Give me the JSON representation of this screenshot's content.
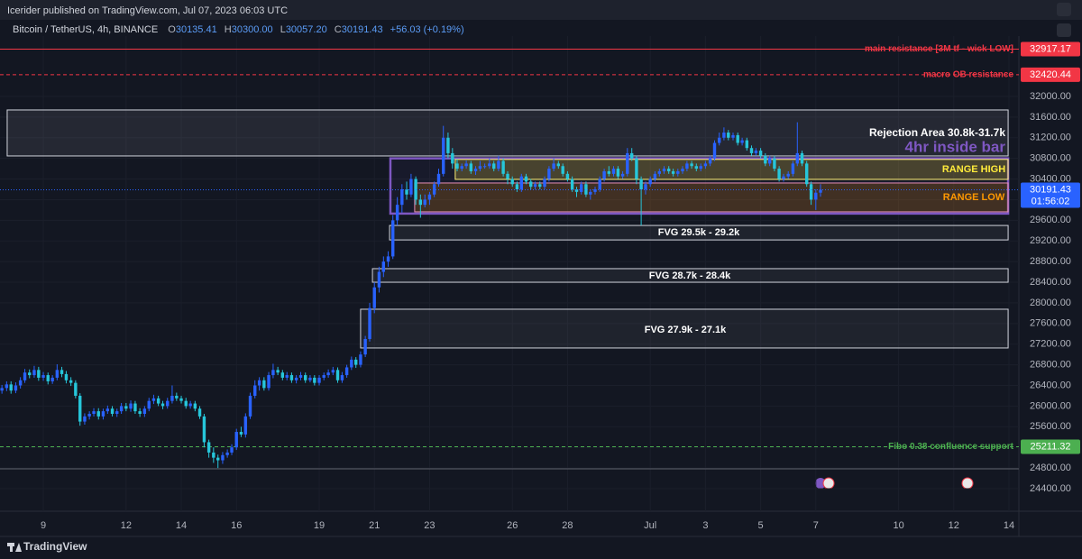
{
  "header": {
    "publisher": "Icerider published on TradingView.com, Jul 07, 2023 06:03 UTC",
    "symbol": "Bitcoin / TetherUS, 4h, BINANCE",
    "ohlc": [
      {
        "key": "O",
        "value": "30135.41"
      },
      {
        "key": "H",
        "value": "30300.00"
      },
      {
        "key": "L",
        "value": "30057.20"
      },
      {
        "key": "C",
        "value": "30191.43"
      }
    ],
    "change": "+56.03 (+0.19%)"
  },
  "chart_data": {
    "type": "candlestick",
    "x": [
      7.5,
      7.67,
      7.83,
      8,
      8.17,
      8.33,
      8.5,
      8.67,
      8.83,
      9,
      9.17,
      9.33,
      9.5,
      9.67,
      9.83,
      10,
      10.17,
      10.33,
      10.5,
      10.67,
      10.83,
      11,
      11.17,
      11.33,
      11.5,
      11.67,
      11.83,
      12,
      12.17,
      12.33,
      12.5,
      12.67,
      12.83,
      13,
      13.17,
      13.33,
      13.5,
      13.67,
      13.83,
      14,
      14.17,
      14.33,
      14.5,
      14.67,
      14.83,
      15,
      15.17,
      15.33,
      15.5,
      15.67,
      15.83,
      16,
      16.17,
      16.33,
      16.5,
      16.67,
      16.83,
      17,
      17.17,
      17.33,
      17.5,
      17.67,
      17.83,
      18,
      18.17,
      18.33,
      18.5,
      18.67,
      18.83,
      19,
      19.17,
      19.33,
      19.5,
      19.67,
      19.83,
      20,
      20.17,
      20.33,
      20.5,
      20.67,
      20.83,
      21,
      21.17,
      21.33,
      21.5,
      21.67,
      21.83,
      22,
      22.17,
      22.33,
      22.5,
      22.67,
      22.83,
      23,
      23.17,
      23.33,
      23.5,
      23.67,
      23.83,
      24,
      24.17,
      24.33,
      24.5,
      24.67,
      24.83,
      25,
      25.17,
      25.33,
      25.5,
      25.67,
      25.83,
      26,
      26.17,
      26.33,
      26.5,
      26.67,
      26.83,
      27,
      27.17,
      27.33,
      27.5,
      27.67,
      27.83,
      28,
      28.17,
      28.33,
      28.5,
      28.67,
      28.83,
      29,
      29.17,
      29.33,
      29.5,
      29.67,
      29.83,
      30,
      30.17,
      30.33,
      30.5,
      30.67,
      30.83,
      31,
      31.17,
      31.33,
      31.5,
      31.67,
      31.83,
      32,
      32.17,
      32.33,
      32.5,
      32.67,
      32.83,
      33,
      33.17,
      33.33,
      33.5,
      33.67,
      33.83,
      34,
      34.17,
      34.33,
      34.5,
      34.67,
      34.83,
      35,
      35.17,
      35.33,
      35.5,
      35.67,
      35.83,
      36,
      36.17,
      36.33,
      36.5,
      36.67,
      36.83,
      37,
      37.17
    ],
    "open": [
      26300,
      26350,
      26420,
      26300,
      26400,
      26500,
      26650,
      26600,
      26700,
      26550,
      26600,
      26480,
      26550,
      26700,
      26620,
      26500,
      26450,
      26200,
      25700,
      25800,
      25850,
      25900,
      25800,
      25900,
      25950,
      25850,
      25900,
      26000,
      25950,
      26050,
      25900,
      25850,
      25950,
      26100,
      26150,
      26050,
      26000,
      26100,
      26200,
      26150,
      26100,
      26000,
      26050,
      25950,
      25800,
      25300,
      25100,
      25000,
      24950,
      25050,
      25100,
      25200,
      25500,
      25450,
      25800,
      26200,
      26400,
      26500,
      26350,
      26600,
      26700,
      26650,
      26550,
      26600,
      26500,
      26550,
      26600,
      26500,
      26550,
      26450,
      26550,
      26600,
      26650,
      26700,
      26500,
      26600,
      26750,
      26900,
      26800,
      27000,
      27300,
      27900,
      28300,
      28600,
      28800,
      28900,
      29600,
      29900,
      30200,
      30100,
      30400,
      30000,
      29900,
      30000,
      30100,
      30300,
      30500,
      31200,
      30900,
      30700,
      30600,
      30650,
      30700,
      30550,
      30600,
      30650,
      30650,
      30700,
      30600,
      30750,
      30500,
      30400,
      30300,
      30200,
      30450,
      30350,
      30250,
      30300,
      30250,
      30400,
      30600,
      30700,
      30650,
      30500,
      30400,
      30200,
      30150,
      30300,
      30100,
      30150,
      30200,
      30400,
      30550,
      30500,
      30600,
      30450,
      30500,
      30900,
      30800,
      30400,
      30200,
      30300,
      30400,
      30500,
      30550,
      30600,
      30550,
      30500,
      30550,
      30600,
      30700,
      30650,
      30600,
      30650,
      30700,
      30800,
      31100,
      31200,
      31300,
      31200,
      31250,
      31100,
      31150,
      31000,
      30900,
      30950,
      30850,
      30700,
      30800,
      30600,
      30400,
      30450,
      30500,
      30700,
      30900,
      30700,
      30300,
      30000,
      30135.41
    ],
    "high": [
      26410,
      26480,
      26480,
      26460,
      26560,
      26720,
      26710,
      26780,
      26760,
      26660,
      26650,
      26600,
      26810,
      26760,
      26680,
      26560,
      26500,
      26250,
      25860,
      25900,
      25960,
      25960,
      25950,
      26010,
      26000,
      25950,
      26060,
      26060,
      26110,
      26100,
      25960,
      26000,
      26160,
      26220,
      26200,
      26100,
      26160,
      26400,
      26260,
      26200,
      26160,
      26100,
      26100,
      26000,
      25850,
      25350,
      25200,
      25060,
      25110,
      25160,
      25260,
      25560,
      25600,
      25860,
      26260,
      26500,
      26560,
      26560,
      26660,
      26820,
      26760,
      26700,
      26660,
      26650,
      26600,
      26660,
      26650,
      26600,
      26600,
      26600,
      26650,
      26710,
      26760,
      26750,
      26660,
      26800,
      26960,
      26950,
      27060,
      27360,
      28000,
      28400,
      28700,
      28900,
      29000,
      29700,
      30050,
      30300,
      30350,
      30500,
      30450,
      30100,
      30100,
      30150,
      30350,
      30600,
      31430,
      31300,
      31000,
      30780,
      30700,
      30760,
      30750,
      30650,
      30750,
      30700,
      30800,
      30750,
      30850,
      30800,
      30550,
      30450,
      30350,
      30500,
      30500,
      30400,
      30350,
      30350,
      30450,
      30650,
      30800,
      30750,
      30700,
      30550,
      30450,
      30250,
      30350,
      30350,
      30200,
      30250,
      30450,
      30600,
      30650,
      30650,
      30650,
      30550,
      31000,
      31000,
      30850,
      30450,
      30350,
      30450,
      30550,
      30600,
      30650,
      30650,
      30600,
      30600,
      30650,
      30750,
      30750,
      30700,
      30700,
      30750,
      30850,
      31150,
      31300,
      31400,
      31350,
      31300,
      31300,
      31200,
      31200,
      31050,
      31000,
      31000,
      30900,
      30850,
      30850,
      30650,
      30500,
      30550,
      30750,
      31500,
      30950,
      30750,
      30350,
      30200,
      30300
    ],
    "low": [
      26240,
      26290,
      26240,
      26250,
      26340,
      26450,
      26540,
      26550,
      26490,
      26490,
      26420,
      26430,
      26500,
      26560,
      26440,
      26390,
      26150,
      25620,
      25640,
      25740,
      25800,
      25740,
      25740,
      25850,
      25800,
      25790,
      25850,
      25900,
      25890,
      25850,
      25790,
      25790,
      25900,
      26040,
      26000,
      25940,
      25950,
      26050,
      26100,
      26050,
      25950,
      25950,
      25900,
      25750,
      25200,
      25000,
      24900,
      24800,
      24880,
      25000,
      25050,
      25150,
      25400,
      25390,
      25750,
      26150,
      26300,
      26300,
      26300,
      26540,
      26600,
      26500,
      26500,
      26450,
      26440,
      26500,
      26450,
      26460,
      26400,
      26400,
      26500,
      26550,
      26600,
      26450,
      26450,
      26550,
      26700,
      26740,
      26750,
      26950,
      27250,
      27800,
      28200,
      28500,
      28700,
      28850,
      29500,
      29750,
      30000,
      30050,
      29900,
      29650,
      29850,
      29900,
      30050,
      30250,
      30450,
      30800,
      30600,
      30550,
      30550,
      30600,
      30500,
      30480,
      30550,
      30600,
      30600,
      30550,
      30550,
      30450,
      30300,
      30250,
      30150,
      30150,
      30300,
      30200,
      30200,
      30200,
      30200,
      30350,
      30550,
      30600,
      30450,
      30350,
      30150,
      30050,
      30100,
      30050,
      30000,
      30100,
      30150,
      30350,
      30450,
      30450,
      30400,
      30400,
      30450,
      30750,
      30300,
      29500,
      30100,
      30250,
      30350,
      30450,
      30500,
      30500,
      30450,
      30450,
      30500,
      30550,
      30600,
      30550,
      30550,
      30600,
      30650,
      30750,
      31050,
      31150,
      31150,
      31150,
      31050,
      31050,
      30950,
      30850,
      30850,
      30800,
      30650,
      30650,
      30550,
      30350,
      30350,
      30400,
      30450,
      30650,
      30650,
      30250,
      29900,
      29800,
      30057.2
    ],
    "close": [
      26350,
      26420,
      26300,
      26400,
      26500,
      26650,
      26600,
      26700,
      26550,
      26600,
      26480,
      26550,
      26700,
      26620,
      26500,
      26450,
      26200,
      25700,
      25800,
      25850,
      25900,
      25800,
      25900,
      25950,
      25850,
      25900,
      26000,
      25950,
      26050,
      25900,
      25850,
      25950,
      26100,
      26150,
      26050,
      26000,
      26100,
      26200,
      26150,
      26100,
      26000,
      26050,
      25950,
      25800,
      25300,
      25100,
      25000,
      24950,
      25050,
      25100,
      25200,
      25500,
      25450,
      25800,
      26200,
      26400,
      26500,
      26350,
      26600,
      26700,
      26650,
      26550,
      26600,
      26500,
      26550,
      26600,
      26500,
      26550,
      26450,
      26550,
      26600,
      26650,
      26700,
      26500,
      26600,
      26750,
      26900,
      26800,
      27000,
      27300,
      27900,
      28300,
      28600,
      28800,
      28900,
      29600,
      29900,
      30200,
      30100,
      30400,
      30000,
      29900,
      30000,
      30100,
      30300,
      30500,
      31200,
      30900,
      30700,
      30600,
      30650,
      30700,
      30550,
      30600,
      30650,
      30650,
      30700,
      30600,
      30750,
      30500,
      30400,
      30300,
      30200,
      30450,
      30350,
      30250,
      30300,
      30250,
      30400,
      30600,
      30700,
      30650,
      30500,
      30400,
      30200,
      30150,
      30300,
      30100,
      30150,
      30200,
      30400,
      30550,
      30500,
      30600,
      30450,
      30500,
      30900,
      30800,
      30400,
      30200,
      30300,
      30400,
      30500,
      30550,
      30600,
      30550,
      30500,
      30550,
      30600,
      30700,
      30650,
      30600,
      30650,
      30700,
      30800,
      31100,
      31200,
      31300,
      31200,
      31250,
      31100,
      31150,
      31000,
      30900,
      30950,
      30850,
      30700,
      30800,
      30600,
      30400,
      30450,
      30500,
      30700,
      30900,
      30700,
      30300,
      30000,
      30135.41,
      30191.43
    ],
    "up_color": "#2962ff",
    "down_color": "#26c6da",
    "xlim": [
      7.43,
      44.36
    ],
    "xticks": [
      9,
      12,
      14,
      16,
      19,
      21,
      23,
      26,
      28,
      {
        "value": 31,
        "label": "Jul"
      },
      {
        "value": 33,
        "label": "3"
      },
      {
        "value": 35,
        "label": "5"
      },
      {
        "value": 37,
        "label": "7"
      },
      {
        "value": 40,
        "label": "10"
      },
      {
        "value": 42,
        "label": "12"
      },
      {
        "value": 44,
        "label": "14"
      }
    ],
    "ylim": [
      23963,
      33170
    ],
    "yticks": [
      {
        "value": 24400,
        "label": "24400.00"
      },
      {
        "value": 24800,
        "label": "24800.00"
      },
      {
        "value": 25200,
        "label": "25200.00"
      },
      {
        "value": 25600,
        "label": "25600.00"
      },
      {
        "value": 26000,
        "label": "26000.00"
      },
      {
        "value": 26400,
        "label": "26400.00"
      },
      {
        "value": 26800,
        "label": "26800.00"
      },
      {
        "value": 27200,
        "label": "27200.00"
      },
      {
        "value": 27600,
        "label": "27600.00"
      },
      {
        "value": 28000,
        "label": "28000.00"
      },
      {
        "value": 28400,
        "label": "28400.00"
      },
      {
        "value": 28800,
        "label": "28800.00"
      },
      {
        "value": 29200,
        "label": "29200.00"
      },
      {
        "value": 29600,
        "label": "29600.00"
      },
      {
        "value": 30000,
        "label": "30000.00"
      },
      {
        "value": 30400,
        "label": "30400.00"
      },
      {
        "value": 30800,
        "label": "30800.00"
      },
      {
        "value": 31200,
        "label": "31200.00"
      },
      {
        "value": 31600,
        "label": "31600.00"
      },
      {
        "value": 32000,
        "label": "32000.00"
      }
    ],
    "grid": true,
    "levels": [
      {
        "value": 32917.17,
        "label": "main resistance [3M tf - wick LOW]",
        "color": "#f23645",
        "dash": false
      },
      {
        "value": 32420.44,
        "label": "macro OB resistance",
        "color": "#f23645",
        "dash": true
      },
      {
        "value": 25211.32,
        "label": "Fibo 0.38 confluence support",
        "color": "#4caf50",
        "dash": true
      },
      {
        "value": 24785,
        "color": "#5d606b",
        "dash": false
      }
    ],
    "zones": [
      {
        "label": "Rejection Area 30.8k-31.7k",
        "x": [
          7.69,
          43.97
        ],
        "y": [
          30847,
          31738
        ],
        "color": "#d1d4dc",
        "fill": "rgba(120,123,134,0.18)",
        "label_color": "#ffffff"
      },
      {
        "label": "4hr inside bar",
        "x": [
          21.58,
          43.97
        ],
        "y": [
          29730,
          30800
        ],
        "color": "#7e57c2",
        "fill": "rgba(126,87,194,0.06)",
        "label_color": "#7e57c2"
      },
      {
        "label": "RANGE HIGH",
        "x": [
          23.93,
          43.97
        ],
        "y": [
          30393,
          30780
        ],
        "color": "#fff176",
        "fill": "rgba(245,215,66,0.22)",
        "label_color": "#ffeb3b"
      },
      {
        "label": "RANGE LOW",
        "x": [
          22.46,
          43.97
        ],
        "y": [
          29764,
          30323
        ],
        "color": "#e58fb8",
        "fill": "rgba(255,152,0,0.18)",
        "label_color": "#ff9800"
      },
      {
        "label": "FVG 29.5k - 29.2k",
        "x": [
          21.55,
          43.97
        ],
        "y": [
          29220,
          29500
        ],
        "color": "#d1d4dc",
        "fill": "rgba(120,123,134,0.12)",
        "label_color": "#ffffff"
      },
      {
        "label": "FVG 28.7k - 28.4k",
        "x": [
          20.93,
          43.97
        ],
        "y": [
          28400,
          28663
        ],
        "color": "#d1d4dc",
        "fill": "rgba(120,123,134,0.12)",
        "label_color": "#ffffff"
      },
      {
        "label": "FVG 27.9k - 27.1k",
        "x": [
          20.5,
          43.97
        ],
        "y": [
          27126,
          27877
        ],
        "color": "#d1d4dc",
        "fill": "rgba(120,123,134,0.12)",
        "label_color": "#ffffff"
      }
    ],
    "last_price": {
      "value": 30191.43,
      "countdown": "01:56:02",
      "color": "#2962ff"
    }
  },
  "footer": {
    "brand": "TradingView"
  }
}
